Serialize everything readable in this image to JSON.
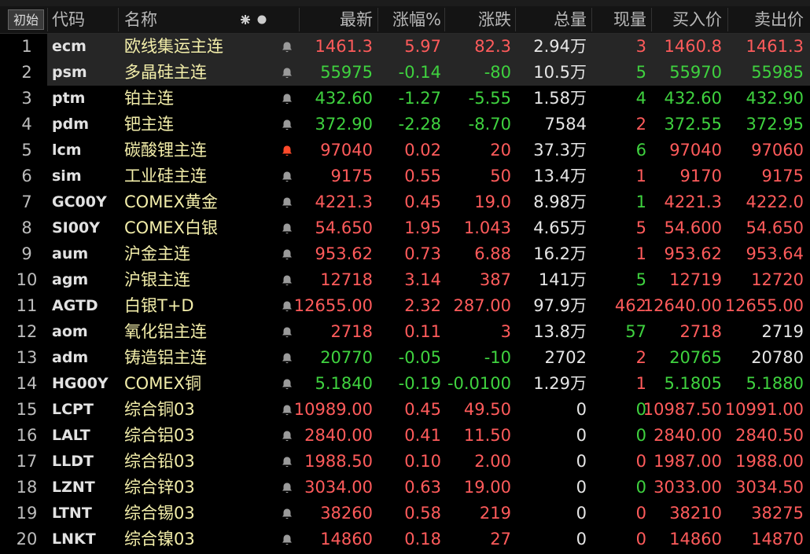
{
  "header": {
    "button": "初始",
    "columns": {
      "code": "代码",
      "name": "名称",
      "last": "最新",
      "pct": "涨幅%",
      "chg": "涨跌",
      "total": "总量",
      "now": "现量",
      "bid": "买入价",
      "ask": "卖出价"
    }
  },
  "palette": {
    "up": "#ff5b5b",
    "down": "#3fd23f",
    "flat": "#e6e6e6"
  },
  "rows": [
    {
      "no": "1",
      "code": "ecm",
      "name": "欧线集运主连",
      "last": "1461.3",
      "pct": "5.97",
      "chg": "82.3",
      "total": "2.94万",
      "now": "3",
      "bid": "1460.8",
      "ask": "1461.3",
      "tone": "up",
      "now_tone": "up",
      "ask_tone": "up",
      "selected": true
    },
    {
      "no": "2",
      "code": "psm",
      "name": "多晶硅主连",
      "last": "55975",
      "pct": "-0.14",
      "chg": "-80",
      "total": "10.5万",
      "now": "5",
      "bid": "55970",
      "ask": "55985",
      "tone": "down",
      "now_tone": "down",
      "ask_tone": "down",
      "selected": true
    },
    {
      "no": "3",
      "code": "ptm",
      "name": "铂主连",
      "last": "432.60",
      "pct": "-1.27",
      "chg": "-5.55",
      "total": "1.58万",
      "now": "4",
      "bid": "432.60",
      "ask": "432.90",
      "tone": "down",
      "now_tone": "down",
      "ask_tone": "down"
    },
    {
      "no": "4",
      "code": "pdm",
      "name": "钯主连",
      "last": "372.90",
      "pct": "-2.28",
      "chg": "-8.70",
      "total": "7584",
      "now": "2",
      "bid": "372.55",
      "ask": "372.95",
      "tone": "down",
      "now_tone": "up",
      "ask_tone": "down"
    },
    {
      "no": "5",
      "code": "lcm",
      "name": "碳酸锂主连",
      "last": "97040",
      "pct": "0.02",
      "chg": "20",
      "total": "37.3万",
      "now": "6",
      "bid": "97040",
      "ask": "97060",
      "tone": "up",
      "now_tone": "down",
      "ask_tone": "up",
      "alert": true
    },
    {
      "no": "6",
      "code": "sim",
      "name": "工业硅主连",
      "last": "9175",
      "pct": "0.55",
      "chg": "50",
      "total": "13.4万",
      "now": "1",
      "bid": "9170",
      "ask": "9175",
      "tone": "up",
      "now_tone": "up",
      "ask_tone": "up"
    },
    {
      "no": "7",
      "code": "GC00Y",
      "name": "COMEX黄金",
      "last": "4221.3",
      "pct": "0.45",
      "chg": "19.0",
      "total": "8.98万",
      "now": "1",
      "bid": "4221.3",
      "ask": "4222.0",
      "tone": "up",
      "now_tone": "down",
      "ask_tone": "up"
    },
    {
      "no": "8",
      "code": "SI00Y",
      "name": "COMEX白银",
      "last": "54.650",
      "pct": "1.95",
      "chg": "1.043",
      "total": "4.65万",
      "now": "5",
      "bid": "54.600",
      "ask": "54.650",
      "tone": "up",
      "now_tone": "up",
      "ask_tone": "up"
    },
    {
      "no": "9",
      "code": "aum",
      "name": "沪金主连",
      "last": "953.62",
      "pct": "0.73",
      "chg": "6.88",
      "total": "16.2万",
      "now": "1",
      "bid": "953.62",
      "ask": "953.64",
      "tone": "up",
      "now_tone": "up",
      "ask_tone": "up"
    },
    {
      "no": "10",
      "code": "agm",
      "name": "沪银主连",
      "last": "12718",
      "pct": "3.14",
      "chg": "387",
      "total": "141万",
      "now": "5",
      "bid": "12719",
      "ask": "12720",
      "tone": "up",
      "now_tone": "down",
      "ask_tone": "up"
    },
    {
      "no": "11",
      "code": "AGTD",
      "name": "白银T+D",
      "last": "12655.00",
      "pct": "2.32",
      "chg": "287.00",
      "total": "97.9万",
      "now": "462",
      "bid": "12640.00",
      "ask": "12655.00",
      "tone": "up",
      "now_tone": "up",
      "ask_tone": "up"
    },
    {
      "no": "12",
      "code": "aom",
      "name": "氧化铝主连",
      "last": "2718",
      "pct": "0.11",
      "chg": "3",
      "total": "13.8万",
      "now": "57",
      "bid": "2718",
      "ask": "2719",
      "tone": "up",
      "now_tone": "down",
      "ask_tone": "flat"
    },
    {
      "no": "13",
      "code": "adm",
      "name": "铸造铝主连",
      "last": "20770",
      "pct": "-0.05",
      "chg": "-10",
      "total": "2702",
      "now": "2",
      "bid": "20765",
      "ask": "20780",
      "tone": "down",
      "now_tone": "up",
      "ask_tone": "flat"
    },
    {
      "no": "14",
      "code": "HG00Y",
      "name": "COMEX铜",
      "last": "5.1840",
      "pct": "-0.19",
      "chg": "-0.0100",
      "total": "1.29万",
      "now": "1",
      "bid": "5.1805",
      "ask": "5.1880",
      "tone": "down",
      "now_tone": "up",
      "ask_tone": "down"
    },
    {
      "no": "15",
      "code": "LCPT",
      "name": "综合铜03",
      "last": "10989.00",
      "pct": "0.45",
      "chg": "49.50",
      "total": "0",
      "now": "0",
      "bid": "10987.50",
      "ask": "10991.00",
      "tone": "up",
      "now_tone": "down",
      "ask_tone": "up"
    },
    {
      "no": "16",
      "code": "LALT",
      "name": "综合铝03",
      "last": "2840.00",
      "pct": "0.41",
      "chg": "11.50",
      "total": "0",
      "now": "0",
      "bid": "2840.00",
      "ask": "2840.50",
      "tone": "up",
      "now_tone": "down",
      "ask_tone": "up"
    },
    {
      "no": "17",
      "code": "LLDT",
      "name": "综合铅03",
      "last": "1988.50",
      "pct": "0.10",
      "chg": "2.00",
      "total": "0",
      "now": "0",
      "bid": "1987.00",
      "ask": "1988.00",
      "tone": "up",
      "now_tone": "up",
      "ask_tone": "up"
    },
    {
      "no": "18",
      "code": "LZNT",
      "name": "综合锌03",
      "last": "3034.00",
      "pct": "0.63",
      "chg": "19.00",
      "total": "0",
      "now": "0",
      "bid": "3033.00",
      "ask": "3034.50",
      "tone": "up",
      "now_tone": "down",
      "ask_tone": "up"
    },
    {
      "no": "19",
      "code": "LTNT",
      "name": "综合锡03",
      "last": "38260",
      "pct": "0.58",
      "chg": "219",
      "total": "0",
      "now": "0",
      "bid": "38210",
      "ask": "38275",
      "tone": "up",
      "now_tone": "up",
      "ask_tone": "up"
    },
    {
      "no": "20",
      "code": "LNKT",
      "name": "综合镍03",
      "last": "14860",
      "pct": "0.18",
      "chg": "27",
      "total": "0",
      "now": "0",
      "bid": "14860",
      "ask": "14870",
      "tone": "up",
      "now_tone": "up",
      "ask_tone": "up"
    }
  ]
}
